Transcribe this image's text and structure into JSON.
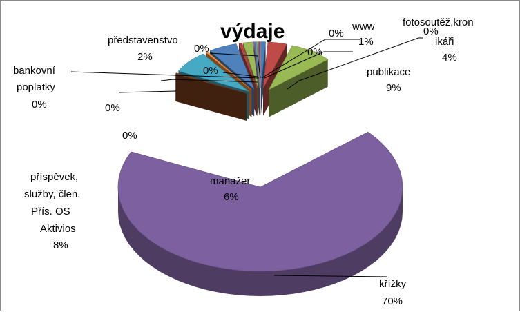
{
  "chart_data": {
    "type": "pie",
    "title": "výdaje",
    "slices": [
      {
        "id": "www",
        "label": "www",
        "value": 1,
        "value_label": "1%",
        "color": "#4a7ebb"
      },
      {
        "id": "fotosoutez",
        "label": "fotosoutěž,kronikáři",
        "value": 4,
        "value_label": "4%",
        "color": "#be4b48"
      },
      {
        "id": "publikace",
        "label": "publikace",
        "value": 9,
        "value_label": "9%",
        "color": "#98b954"
      },
      {
        "id": "krizky",
        "label": "křížky",
        "value": 70,
        "value_label": "70%",
        "color": "#7d60a0"
      },
      {
        "id": "brown-small",
        "label": "",
        "value": 0.4,
        "value_label": "0%",
        "color": "#7f3f1d"
      },
      {
        "id": "prispevek",
        "label": "příspěvek, služby, člen. Přís. OS Aktivios",
        "value": 8,
        "value_label": "8%",
        "color": "#46aac5"
      },
      {
        "id": "orange-small",
        "label": "",
        "value": 0.4,
        "value_label": "0%",
        "color": "#f69240"
      },
      {
        "id": "manazer",
        "label": "manažer",
        "value": 6,
        "value_label": "6%",
        "color": "#4f81bd"
      },
      {
        "id": "bankovni",
        "label": "bankovní poplatky",
        "value": 0.3,
        "value_label": "0%",
        "color": "#c0504d"
      },
      {
        "id": "red-small",
        "label": "",
        "value": 0.3,
        "value_label": "0%",
        "color": "#c0504d"
      },
      {
        "id": "predstavenstvo",
        "label": "představenstvo",
        "value": 2,
        "value_label": "2%",
        "color": "#9bbb59"
      },
      {
        "id": "purple-small",
        "label": "",
        "value": 0.3,
        "value_label": "0%",
        "color": "#8064a2"
      },
      {
        "id": "teal-small",
        "label": "",
        "value": 0.3,
        "value_label": "0%",
        "color": "#4bacc6"
      },
      {
        "id": "zero-a",
        "label": "",
        "value": 0.2,
        "value_label": "0%",
        "color": "#f79646"
      },
      {
        "id": "zero-b",
        "label": "",
        "value": 0.2,
        "value_label": "0%",
        "color": "#4f81bd"
      },
      {
        "id": "zero-c",
        "label": "",
        "value": 0.2,
        "value_label": "0%",
        "color": "#c0504d"
      }
    ]
  },
  "labels": {
    "www_name": "www",
    "www_pct": "1%",
    "foto_line1": "fotosoutěž,kron",
    "foto_line2": "ikáři",
    "foto_pct": "4%",
    "foto_zero": "0%",
    "publikace_name": "publikace",
    "publikace_pct": "9%",
    "krizky_name": "křížky",
    "krizky_pct": "70%",
    "manazer_name": "manažer",
    "manazer_pct": "6%",
    "prispevek_l1": "příspěvek,",
    "prispevek_l2": "služby, člen.",
    "prispevek_l3": "Přís.  OS",
    "prispevek_l4": "Aktivios",
    "prispevek_pct": "8%",
    "bank_l1": "bankovní",
    "bank_l2": "poplatky",
    "bank_pct": "0%",
    "predst_name": "představenstvo",
    "predst_pct": "2%",
    "zero_1": "0%",
    "zero_2": "0%",
    "zero_3": "0%",
    "zero_4": "0%",
    "zero_5": "0%",
    "zero_6": "0%"
  }
}
